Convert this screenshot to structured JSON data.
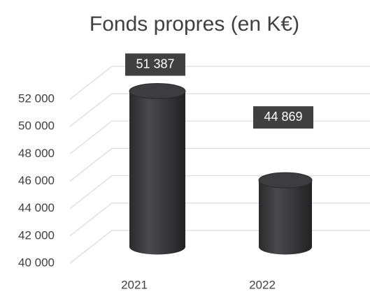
{
  "chart_data": {
    "type": "bar3d",
    "title": "Fonds propres (en K€)",
    "categories": [
      "2021",
      "2022"
    ],
    "values": [
      51387,
      44869
    ],
    "value_labels": [
      "51 387",
      "44 869"
    ],
    "color": "#3a3a3d",
    "ylim": [
      40000,
      52000
    ],
    "yticks": [
      {
        "value": 40000,
        "label": "40 000"
      },
      {
        "value": 42000,
        "label": "42 000"
      },
      {
        "value": 44000,
        "label": "44 000"
      },
      {
        "value": 46000,
        "label": "46 000"
      },
      {
        "value": 48000,
        "label": "48 000"
      },
      {
        "value": 50000,
        "label": "50 000"
      },
      {
        "value": 52000,
        "label": "52 000"
      }
    ],
    "grid": true
  }
}
